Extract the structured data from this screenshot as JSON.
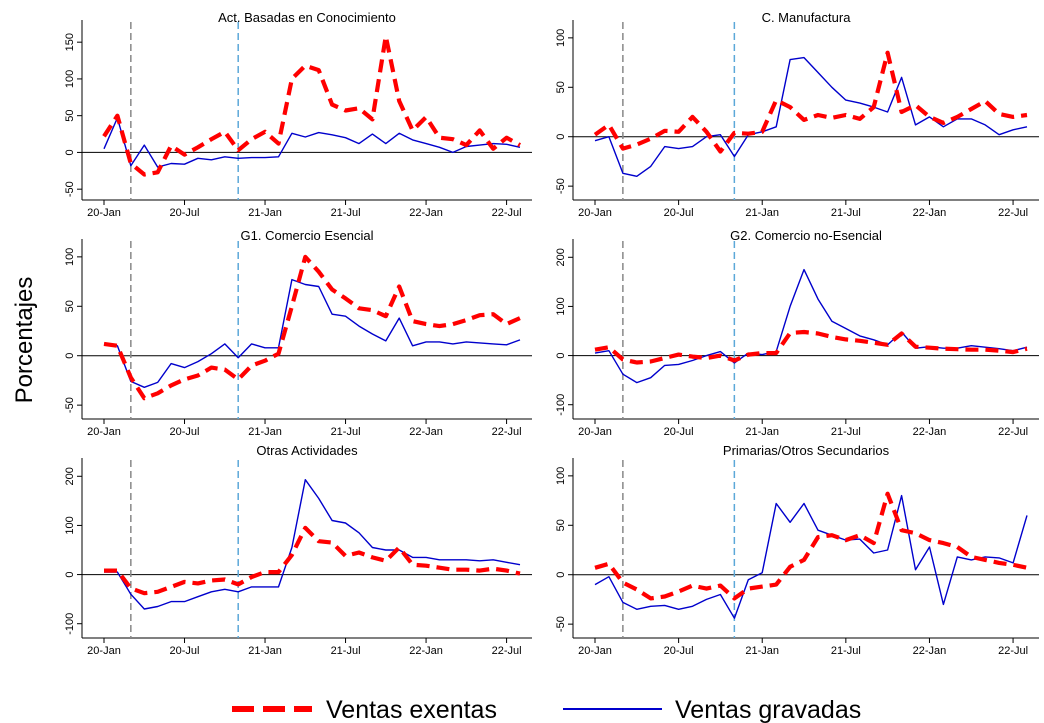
{
  "figure": {
    "ylabel": "Porcentajes",
    "colors": {
      "exentas": "#ff0000",
      "gravadas": "#0000cc",
      "vline1": "#888888",
      "vline2": "#5ba8d8",
      "zero": "#000000"
    },
    "legend": {
      "position": "bottom-center",
      "items": [
        {
          "label": "Ventas exentas",
          "style": "dashed",
          "color": "#ff0000"
        },
        {
          "label": "Ventas gravadas",
          "style": "solid",
          "color": "#0000cc"
        }
      ]
    }
  },
  "chart_data": [
    {
      "type": "line",
      "title": "Act. Basadas en Conocimiento",
      "x": [
        "2020-01",
        "2020-02",
        "2020-03",
        "2020-04",
        "2020-05",
        "2020-06",
        "2020-07",
        "2020-08",
        "2020-09",
        "2020-10",
        "2020-11",
        "2020-12",
        "2021-01",
        "2021-02",
        "2021-03",
        "2021-04",
        "2021-05",
        "2021-06",
        "2021-07",
        "2021-08",
        "2021-09",
        "2021-10",
        "2021-11",
        "2021-12",
        "2022-01",
        "2022-02",
        "2022-03",
        "2022-04",
        "2022-05",
        "2022-06",
        "2022-07",
        "2022-08"
      ],
      "xticks": [
        "20-Jan",
        "20-Jul",
        "21-Jan",
        "21-Jul",
        "22-Jan",
        "22-Jul"
      ],
      "vlines": [
        "2020-03",
        "2020-11"
      ],
      "yticks": [
        -50,
        0,
        50,
        100,
        150
      ],
      "ylim": [
        -62,
        172
      ],
      "series": [
        {
          "name": "Ventas exentas",
          "values": [
            22,
            50,
            -15,
            -30,
            -27,
            9,
            -3,
            7,
            18,
            28,
            3,
            18,
            28,
            12,
            100,
            118,
            112,
            65,
            57,
            60,
            45,
            158,
            70,
            30,
            48,
            20,
            18,
            10,
            30,
            5,
            20,
            10
          ]
        },
        {
          "name": "Ventas gravadas",
          "values": [
            5,
            47,
            -18,
            10,
            -20,
            -15,
            -16,
            -8,
            -10,
            -6,
            -8,
            -7,
            -7,
            -6,
            26,
            21,
            27,
            24,
            20,
            12,
            25,
            12,
            26,
            17,
            12,
            7,
            0,
            8,
            10,
            12,
            11,
            7
          ]
        }
      ]
    },
    {
      "type": "line",
      "title": "C. Manufactura",
      "x": [
        "2020-01",
        "2020-02",
        "2020-03",
        "2020-04",
        "2020-05",
        "2020-06",
        "2020-07",
        "2020-08",
        "2020-09",
        "2020-10",
        "2020-11",
        "2020-12",
        "2021-01",
        "2021-02",
        "2021-03",
        "2021-04",
        "2021-05",
        "2021-06",
        "2021-07",
        "2021-08",
        "2021-09",
        "2021-10",
        "2021-11",
        "2021-12",
        "2022-01",
        "2022-02",
        "2022-03",
        "2022-04",
        "2022-05",
        "2022-06",
        "2022-07",
        "2022-08"
      ],
      "xticks": [
        "20-Jan",
        "20-Jul",
        "21-Jan",
        "21-Jul",
        "22-Jan",
        "22-Jul"
      ],
      "vlines": [
        "2020-03",
        "2020-11"
      ],
      "yticks": [
        -50,
        0,
        50,
        100
      ],
      "ylim": [
        -62,
        112
      ],
      "series": [
        {
          "name": "Ventas exentas",
          "values": [
            2,
            12,
            -12,
            -8,
            -2,
            6,
            5,
            20,
            5,
            -15,
            4,
            3,
            5,
            37,
            30,
            17,
            22,
            19,
            22,
            18,
            30,
            85,
            25,
            32,
            20,
            14,
            20,
            28,
            36,
            23,
            20,
            22
          ]
        },
        {
          "name": "Ventas gravadas",
          "values": [
            -4,
            0,
            -37,
            -40,
            -30,
            -10,
            -12,
            -10,
            0,
            2,
            -20,
            2,
            5,
            10,
            78,
            80,
            65,
            50,
            37,
            34,
            30,
            25,
            60,
            12,
            20,
            10,
            18,
            18,
            12,
            2,
            7,
            10
          ]
        }
      ]
    },
    {
      "type": "line",
      "title": "G1. Comercio Esencial",
      "x": [
        "2020-01",
        "2020-02",
        "2020-03",
        "2020-04",
        "2020-05",
        "2020-06",
        "2020-07",
        "2020-08",
        "2020-09",
        "2020-10",
        "2020-11",
        "2020-12",
        "2021-01",
        "2021-02",
        "2021-03",
        "2021-04",
        "2021-05",
        "2021-06",
        "2021-07",
        "2021-08",
        "2021-09",
        "2021-10",
        "2021-11",
        "2021-12",
        "2022-01",
        "2022-02",
        "2022-03",
        "2022-04",
        "2022-05",
        "2022-06",
        "2022-07",
        "2022-08"
      ],
      "xticks": [
        "20-Jan",
        "20-Jul",
        "21-Jan",
        "21-Jul",
        "22-Jan",
        "22-Jul"
      ],
      "vlines": [
        "2020-03",
        "2020-11"
      ],
      "yticks": [
        -50,
        0,
        50,
        100
      ],
      "ylim": [
        -62,
        112
      ],
      "series": [
        {
          "name": "Ventas exentas",
          "values": [
            12,
            10,
            -22,
            -43,
            -38,
            -30,
            -24,
            -20,
            -12,
            -14,
            -24,
            -10,
            -5,
            2,
            50,
            100,
            85,
            67,
            58,
            48,
            46,
            40,
            70,
            35,
            32,
            30,
            32,
            36,
            41,
            42,
            32,
            38
          ]
        },
        {
          "name": "Ventas gravadas",
          "values": [
            12,
            10,
            -26,
            -32,
            -27,
            -8,
            -12,
            -6,
            2,
            12,
            -2,
            12,
            8,
            8,
            77,
            72,
            70,
            42,
            40,
            30,
            22,
            15,
            38,
            10,
            14,
            14,
            12,
            14,
            13,
            12,
            11,
            16
          ]
        }
      ]
    },
    {
      "type": "line",
      "title": "G2. Comercio no-Esencial",
      "x": [
        "2020-01",
        "2020-02",
        "2020-03",
        "2020-04",
        "2020-05",
        "2020-06",
        "2020-07",
        "2020-08",
        "2020-09",
        "2020-10",
        "2020-11",
        "2020-12",
        "2021-01",
        "2021-02",
        "2021-03",
        "2021-04",
        "2021-05",
        "2021-06",
        "2021-07",
        "2021-08",
        "2021-09",
        "2021-10",
        "2021-11",
        "2021-12",
        "2022-01",
        "2022-02",
        "2022-03",
        "2022-04",
        "2022-05",
        "2022-06",
        "2022-07",
        "2022-08"
      ],
      "xticks": [
        "20-Jan",
        "20-Jul",
        "21-Jan",
        "21-Jul",
        "22-Jan",
        "22-Jul"
      ],
      "vlines": [
        "2020-03",
        "2020-11"
      ],
      "yticks": [
        -100,
        0,
        100,
        200
      ],
      "ylim": [
        -125,
        225
      ],
      "series": [
        {
          "name": "Ventas exentas",
          "values": [
            12,
            17,
            -8,
            -14,
            -12,
            -5,
            2,
            -2,
            -5,
            0,
            -10,
            2,
            5,
            5,
            46,
            48,
            45,
            38,
            33,
            30,
            26,
            22,
            45,
            18,
            16,
            14,
            13,
            12,
            12,
            10,
            7,
            14
          ]
        },
        {
          "name": "Ventas gravadas",
          "values": [
            5,
            10,
            -38,
            -55,
            -45,
            -20,
            -18,
            -10,
            0,
            8,
            -15,
            5,
            2,
            8,
            100,
            175,
            115,
            70,
            55,
            40,
            32,
            22,
            48,
            15,
            18,
            15,
            15,
            20,
            17,
            14,
            10,
            17
          ]
        }
      ]
    },
    {
      "type": "line",
      "title": "Otras Actividades",
      "x": [
        "2020-01",
        "2020-02",
        "2020-03",
        "2020-04",
        "2020-05",
        "2020-06",
        "2020-07",
        "2020-08",
        "2020-09",
        "2020-10",
        "2020-11",
        "2020-12",
        "2021-01",
        "2021-02",
        "2021-03",
        "2021-04",
        "2021-05",
        "2021-06",
        "2021-07",
        "2021-08",
        "2021-09",
        "2021-10",
        "2021-11",
        "2021-12",
        "2022-01",
        "2022-02",
        "2022-03",
        "2022-04",
        "2022-05",
        "2022-06",
        "2022-07",
        "2022-08"
      ],
      "xticks": [
        "20-Jan",
        "20-Jul",
        "21-Jan",
        "21-Jul",
        "22-Jan",
        "22-Jul"
      ],
      "vlines": [
        "2020-03",
        "2020-11"
      ],
      "yticks": [
        -100,
        0,
        100,
        200
      ],
      "ylim": [
        -125,
        225
      ],
      "series": [
        {
          "name": "Ventas exentas",
          "values": [
            8,
            8,
            -28,
            -38,
            -35,
            -25,
            -15,
            -18,
            -12,
            -10,
            -20,
            -5,
            5,
            5,
            40,
            95,
            68,
            65,
            38,
            45,
            35,
            28,
            55,
            20,
            18,
            14,
            10,
            10,
            8,
            12,
            8,
            2
          ]
        },
        {
          "name": "Ventas gravadas",
          "values": [
            5,
            5,
            -40,
            -70,
            -65,
            -55,
            -55,
            -45,
            -35,
            -30,
            -35,
            -25,
            -25,
            -25,
            55,
            193,
            155,
            110,
            105,
            85,
            55,
            50,
            50,
            35,
            35,
            30,
            30,
            30,
            28,
            30,
            25,
            20
          ]
        }
      ]
    },
    {
      "type": "line",
      "title": "Primarias/Otros Secundarios",
      "x": [
        "2020-01",
        "2020-02",
        "2020-03",
        "2020-04",
        "2020-05",
        "2020-06",
        "2020-07",
        "2020-08",
        "2020-09",
        "2020-10",
        "2020-11",
        "2020-12",
        "2021-01",
        "2021-02",
        "2021-03",
        "2021-04",
        "2021-05",
        "2021-06",
        "2021-07",
        "2021-08",
        "2021-09",
        "2021-10",
        "2021-11",
        "2021-12",
        "2022-01",
        "2022-02",
        "2022-03",
        "2022-04",
        "2022-05",
        "2022-06",
        "2022-07",
        "2022-08"
      ],
      "xticks": [
        "20-Jan",
        "20-Jul",
        "21-Jan",
        "21-Jul",
        "22-Jan",
        "22-Jul"
      ],
      "vlines": [
        "2020-03",
        "2020-11"
      ],
      "yticks": [
        -50,
        0,
        50,
        100
      ],
      "ylim": [
        -62,
        112
      ],
      "series": [
        {
          "name": "Ventas exentas",
          "values": [
            7,
            11,
            -8,
            -15,
            -24,
            -22,
            -17,
            -11,
            -14,
            -11,
            -24,
            -14,
            -12,
            -10,
            8,
            15,
            38,
            40,
            35,
            40,
            32,
            82,
            45,
            42,
            35,
            32,
            28,
            18,
            15,
            12,
            10,
            7
          ]
        },
        {
          "name": "Ventas gravadas",
          "values": [
            -10,
            -2,
            -28,
            -35,
            -32,
            -31,
            -35,
            -32,
            -25,
            -20,
            -44,
            -5,
            2,
            72,
            53,
            72,
            45,
            40,
            35,
            36,
            22,
            25,
            80,
            5,
            28,
            -30,
            18,
            15,
            18,
            17,
            12,
            60
          ]
        }
      ]
    }
  ]
}
